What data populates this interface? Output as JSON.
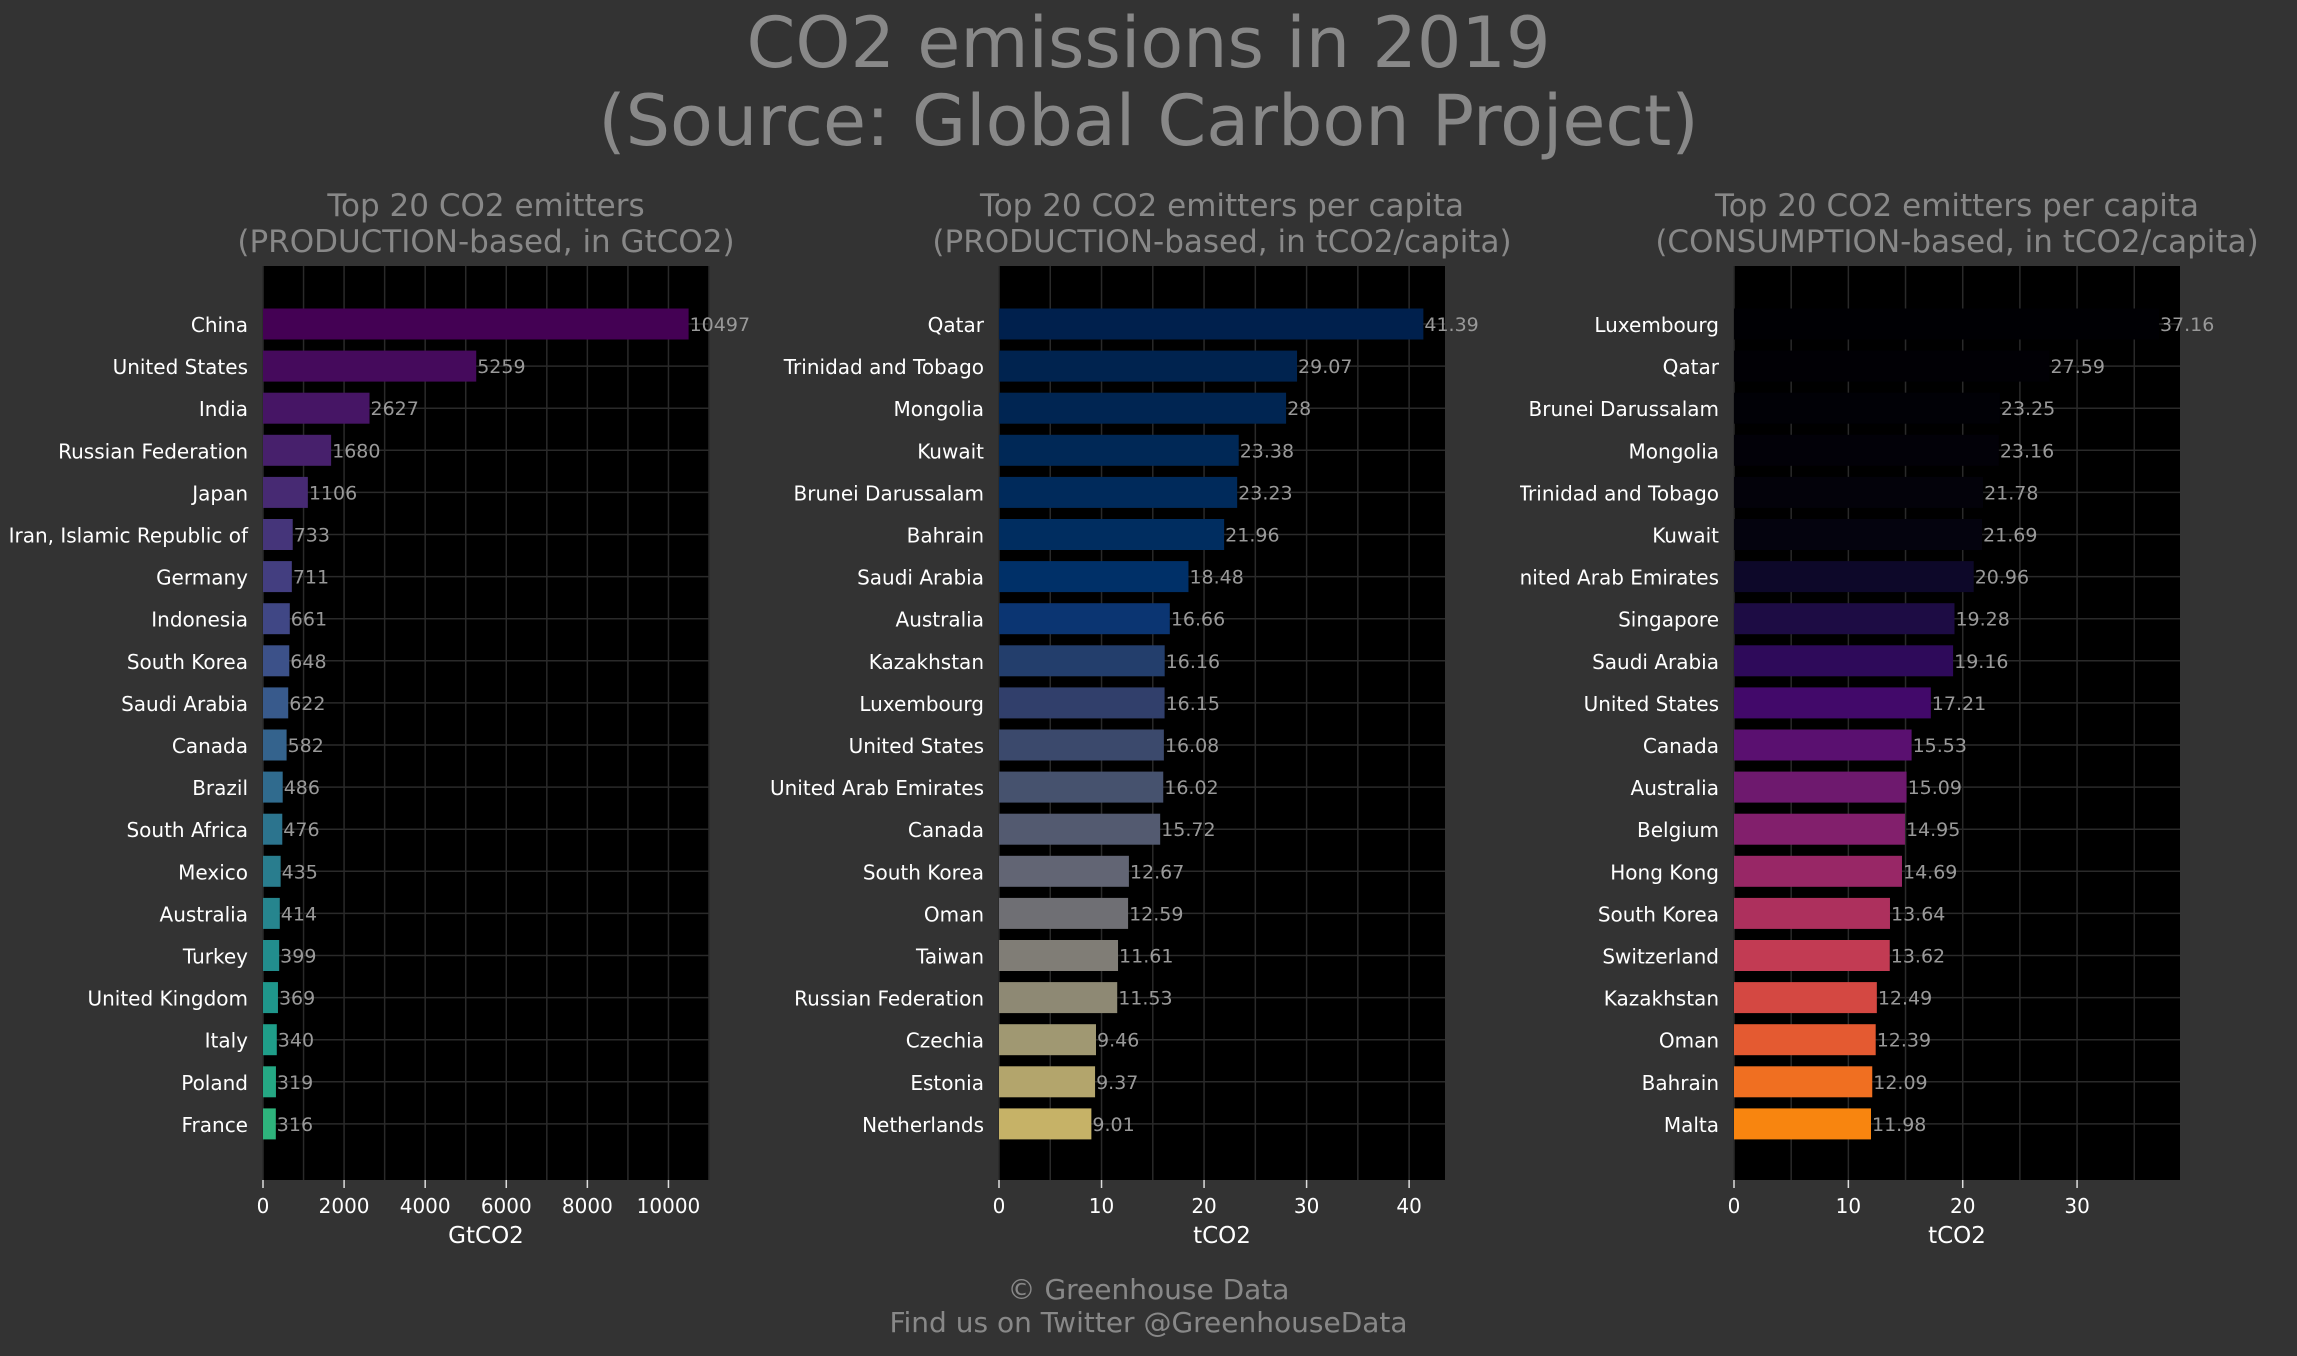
{
  "title": {
    "line1": "CO2 emissions in 2019",
    "line2": "(Source: Global Carbon Project)"
  },
  "footer": {
    "line1": "© Greenhouse Data",
    "line2": "Find us on Twitter @GreenhouseData"
  },
  "colors": {
    "background": "#333333",
    "plot_background": "#000000",
    "grid": "#2a2a2a",
    "title_text": "#888888",
    "label_text": "#ffffff",
    "value_label_text": "#999999"
  },
  "chart_data": [
    {
      "type": "bar",
      "orientation": "horizontal",
      "title": [
        "Top 20 CO2 emitters",
        "(PRODUCTION-based, in GtCO2)"
      ],
      "xlabel": "GtCO2",
      "xlim": [
        0,
        11000
      ],
      "xticks": [
        0,
        2000,
        4000,
        6000,
        8000,
        10000
      ],
      "grid": true,
      "palette": "viridis",
      "categories": [
        "China",
        "United States",
        "India",
        "Russian Federation",
        "Japan",
        "Iran, Islamic Republic of",
        "Germany",
        "Indonesia",
        "South Korea",
        "Saudi Arabia",
        "Canada",
        "Brazil",
        "South Africa",
        "Mexico",
        "Australia",
        "Turkey",
        "United Kingdom",
        "Italy",
        "Poland",
        "France"
      ],
      "values": [
        10497,
        5259,
        2627,
        1680,
        1106,
        733,
        711,
        661,
        648,
        622,
        582,
        486,
        476,
        435,
        414,
        399,
        369,
        340,
        319,
        316
      ],
      "value_labels": [
        "10497",
        "5259",
        "2627",
        "1680",
        "1106",
        "733",
        "711",
        "661",
        "648",
        "622",
        "582",
        "486",
        "476",
        "435",
        "414",
        "399",
        "369",
        "340",
        "319",
        "316"
      ],
      "bar_colors": [
        "#440154",
        "#450a5c",
        "#461565",
        "#47206c",
        "#472a73",
        "#45357a",
        "#433e80",
        "#404785",
        "#3c5189",
        "#385a8c",
        "#34638d",
        "#306b8e",
        "#2c748e",
        "#297d8e",
        "#26858e",
        "#228d8d",
        "#1f968b",
        "#1f9e89",
        "#25a884",
        "#2eb37c"
      ]
    },
    {
      "type": "bar",
      "orientation": "horizontal",
      "title": [
        "Top 20 CO2 emitters per capita",
        "(PRODUCTION-based, in tCO2/capita)"
      ],
      "xlabel": "tCO2",
      "xlim": [
        0,
        43.5
      ],
      "xticks": [
        0,
        10,
        20,
        30,
        40
      ],
      "grid": true,
      "palette": "cividis",
      "categories": [
        "Qatar",
        "Trinidad and Tobago",
        "Mongolia",
        "Kuwait",
        "Brunei Darussalam",
        "Bahrain",
        "Saudi Arabia",
        "Australia",
        "Kazakhstan",
        "Luxembourg",
        "United States",
        "United Arab Emirates",
        "Canada",
        "South Korea",
        "Oman",
        "Taiwan",
        "Russian Federation",
        "Czechia",
        "Estonia",
        "Netherlands"
      ],
      "values": [
        41.39,
        29.07,
        28,
        23.38,
        23.23,
        21.96,
        18.48,
        16.66,
        16.16,
        16.15,
        16.08,
        16.02,
        15.72,
        12.67,
        12.59,
        11.61,
        11.53,
        9.46,
        9.37,
        9.01
      ],
      "value_labels": [
        "41.39",
        "29.07",
        "28",
        "23.38",
        "23.23",
        "21.96",
        "18.48",
        "16.66",
        "16.16",
        "16.15",
        "16.08",
        "16.02",
        "15.72",
        "12.67",
        "12.59",
        "11.61",
        "11.53",
        "9.46",
        "9.37",
        "9.01"
      ],
      "bar_colors": [
        "#00204d",
        "#00234f",
        "#002552",
        "#002856",
        "#002a5b",
        "#002d60",
        "#003068",
        "#0b3572",
        "#233e6c",
        "#313f6b",
        "#3b496c",
        "#46526e",
        "#535a70",
        "#626574",
        "#6f6f74",
        "#807d76",
        "#8e8974",
        "#a09872",
        "#b3a56c",
        "#c6b267"
      ]
    },
    {
      "type": "bar",
      "orientation": "horizontal",
      "title": [
        "Top 20 CO2 emitters per capita",
        "(CONSUMPTION-based, in tCO2/capita)"
      ],
      "xlabel": "tCO2",
      "xlim": [
        0,
        39
      ],
      "xticks": [
        0,
        10,
        20,
        30
      ],
      "grid": true,
      "palette": "inferno",
      "categories": [
        "Luxembourg",
        "Qatar",
        "Brunei Darussalam",
        "Mongolia",
        "Trinidad and Tobago",
        "Kuwait",
        "United Arab Emirates",
        "Singapore",
        "Saudi Arabia",
        "United States",
        "Canada",
        "Australia",
        "Belgium",
        "Hong Kong",
        "South Korea",
        "Switzerland",
        "Kazakhstan",
        "Oman",
        "Bahrain",
        "Malta"
      ],
      "values": [
        37.16,
        27.59,
        23.25,
        23.16,
        21.78,
        21.69,
        20.96,
        19.28,
        19.16,
        17.21,
        15.53,
        15.09,
        14.95,
        14.69,
        13.64,
        13.62,
        12.49,
        12.39,
        12.09,
        11.98
      ],
      "value_labels": [
        "37.16",
        "27.59",
        "23.25",
        "23.16",
        "21.78",
        "21.69",
        "20.96",
        "19.28",
        "19.16",
        "17.21",
        "15.53",
        "15.09",
        "14.95",
        "14.69",
        "13.64",
        "13.62",
        "12.49",
        "12.39",
        "12.09",
        "11.98"
      ],
      "bar_colors": [
        "#000004",
        "#010005",
        "#010106",
        "#020108",
        "#03020a",
        "#04030e",
        "#0d0829",
        "#1d0c44",
        "#2e0a5a",
        "#42096a",
        "#5a1070",
        "#6e196e",
        "#821f6c",
        "#982766",
        "#ad305d",
        "#c23b53",
        "#d44842",
        "#e45a31",
        "#f06f21",
        "#f8850f"
      ]
    }
  ]
}
